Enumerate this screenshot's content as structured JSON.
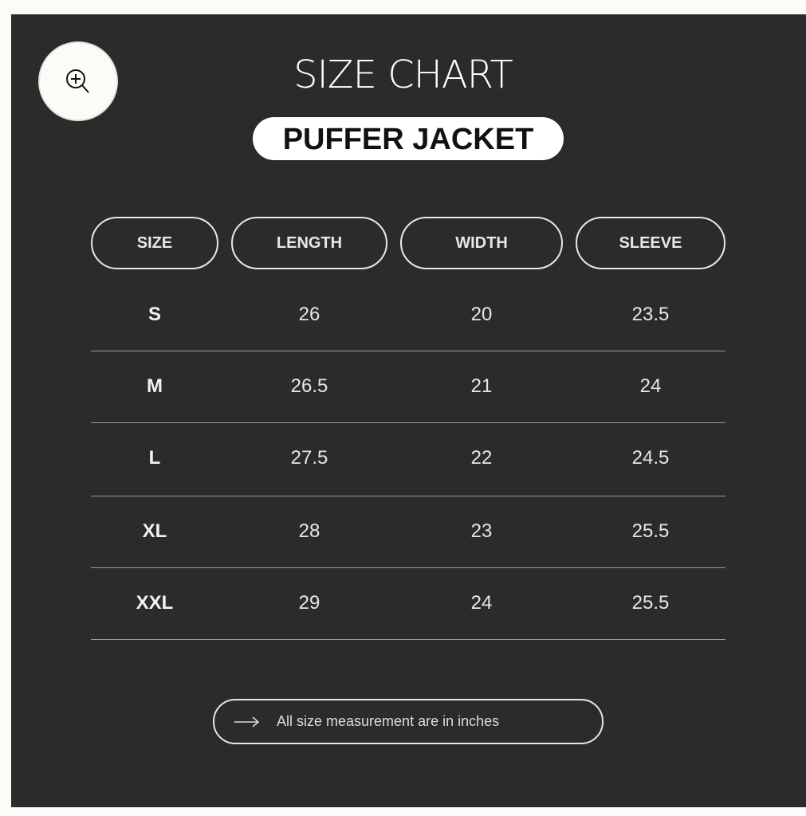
{
  "header": {
    "title": "SIZE CHART",
    "subtitle": "PUFFER JACKET",
    "zoom_icon": "zoom-in-icon"
  },
  "table": {
    "columns": [
      "SIZE",
      "LENGTH",
      "WIDTH",
      "SLEEVE"
    ],
    "rows": [
      [
        "S",
        "26",
        "20",
        "23.5"
      ],
      [
        "M",
        "26.5",
        "21",
        "24"
      ],
      [
        "L",
        "27.5",
        "22",
        "24.5"
      ],
      [
        "XL",
        "28",
        "23",
        "25.5"
      ],
      [
        "XXL",
        "29",
        "24",
        "25.5"
      ]
    ]
  },
  "note": {
    "icon": "arrow-right-icon",
    "text": "All size measurement are in inches"
  },
  "colors": {
    "background": "#2b2b2b",
    "text": "#ffffff",
    "page": "#fcfbf7"
  }
}
